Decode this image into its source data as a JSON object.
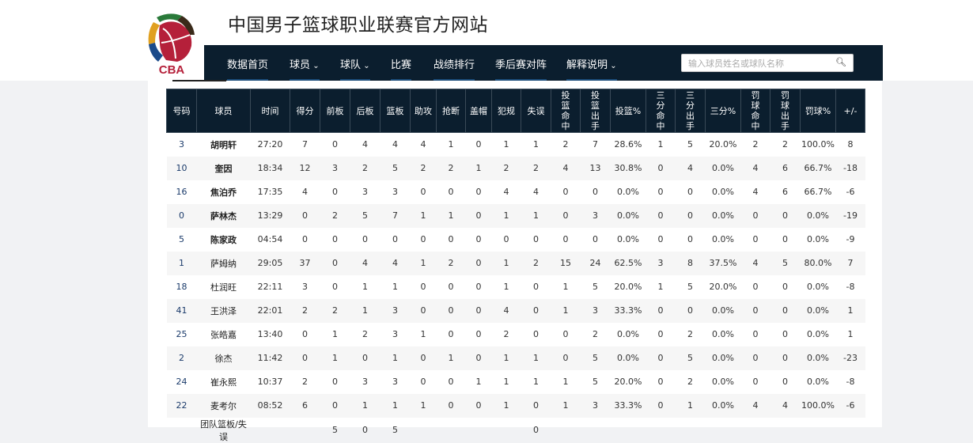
{
  "site": {
    "title": "中国男子篮球职业联赛官方网站",
    "logo_text": "CBA"
  },
  "nav": {
    "items": [
      {
        "label": "数据首页",
        "arrow": false
      },
      {
        "label": "球员",
        "arrow": true
      },
      {
        "label": "球队",
        "arrow": true
      },
      {
        "label": "比赛",
        "arrow": false
      },
      {
        "label": "战绩排行",
        "arrow": false
      },
      {
        "label": "季后赛对阵",
        "arrow": false
      },
      {
        "label": "解释说明",
        "arrow": true
      }
    ],
    "search_placeholder": "输入球员姓名或球队名称",
    "search_icon": "search-icon"
  },
  "table": {
    "headers": [
      "号码",
      "球员",
      "时间",
      "得分",
      "前板",
      "后板",
      "篮板",
      "助攻",
      "抢断",
      "盖帽",
      "犯规",
      "失误",
      "投篮命中",
      "投篮出手",
      "投篮%",
      "三分命中",
      "三分出手",
      "三分%",
      "罚球命中",
      "罚球出手",
      "罚球%",
      "+/-"
    ],
    "rows": [
      [
        "3",
        "胡明轩",
        "27:20",
        "7",
        "0",
        "4",
        "4",
        "4",
        "1",
        "0",
        "1",
        "1",
        "2",
        "7",
        "28.6%",
        "1",
        "5",
        "20.0%",
        "2",
        "2",
        "100.0%",
        "8"
      ],
      [
        "10",
        "奎因",
        "18:34",
        "12",
        "3",
        "2",
        "5",
        "2",
        "2",
        "1",
        "2",
        "2",
        "4",
        "13",
        "30.8%",
        "0",
        "4",
        "0.0%",
        "4",
        "6",
        "66.7%",
        "-18"
      ],
      [
        "16",
        "焦泊乔",
        "17:35",
        "4",
        "0",
        "3",
        "3",
        "0",
        "0",
        "0",
        "4",
        "4",
        "0",
        "0",
        "0.0%",
        "0",
        "0",
        "0.0%",
        "4",
        "6",
        "66.7%",
        "-6"
      ],
      [
        "0",
        "萨林杰",
        "13:29",
        "0",
        "2",
        "5",
        "7",
        "1",
        "1",
        "0",
        "1",
        "1",
        "0",
        "3",
        "0.0%",
        "0",
        "0",
        "0.0%",
        "0",
        "0",
        "0.0%",
        "-19"
      ],
      [
        "5",
        "陈家政",
        "04:54",
        "0",
        "0",
        "0",
        "0",
        "0",
        "0",
        "0",
        "0",
        "0",
        "0",
        "0",
        "0.0%",
        "0",
        "0",
        "0.0%",
        "0",
        "0",
        "0.0%",
        "-9"
      ],
      [
        "1",
        "萨姆纳",
        "29:05",
        "37",
        "0",
        "4",
        "4",
        "1",
        "2",
        "0",
        "1",
        "2",
        "15",
        "24",
        "62.5%",
        "3",
        "8",
        "37.5%",
        "4",
        "5",
        "80.0%",
        "7"
      ],
      [
        "18",
        "杜润旺",
        "22:11",
        "3",
        "0",
        "1",
        "1",
        "0",
        "0",
        "0",
        "1",
        "0",
        "1",
        "5",
        "20.0%",
        "1",
        "5",
        "20.0%",
        "0",
        "0",
        "0.0%",
        "-8"
      ],
      [
        "41",
        "王洪泽",
        "22:01",
        "2",
        "2",
        "1",
        "3",
        "0",
        "0",
        "0",
        "4",
        "0",
        "1",
        "3",
        "33.3%",
        "0",
        "0",
        "0.0%",
        "0",
        "0",
        "0.0%",
        "1"
      ],
      [
        "25",
        "张皓嘉",
        "13:40",
        "0",
        "1",
        "2",
        "3",
        "1",
        "0",
        "0",
        "2",
        "0",
        "0",
        "2",
        "0.0%",
        "0",
        "2",
        "0.0%",
        "0",
        "0",
        "0.0%",
        "1"
      ],
      [
        "2",
        "徐杰",
        "11:42",
        "0",
        "1",
        "0",
        "1",
        "0",
        "1",
        "0",
        "1",
        "1",
        "0",
        "5",
        "0.0%",
        "0",
        "5",
        "0.0%",
        "0",
        "0",
        "0.0%",
        "-23"
      ],
      [
        "24",
        "崔永熙",
        "10:37",
        "2",
        "0",
        "3",
        "3",
        "0",
        "0",
        "1",
        "1",
        "1",
        "1",
        "5",
        "20.0%",
        "0",
        "2",
        "0.0%",
        "0",
        "0",
        "0.0%",
        "-8"
      ],
      [
        "22",
        "麦考尔",
        "08:52",
        "6",
        "0",
        "1",
        "1",
        "1",
        "0",
        "0",
        "1",
        "0",
        "1",
        "3",
        "33.3%",
        "0",
        "1",
        "0.0%",
        "4",
        "4",
        "100.0%",
        "-6"
      ],
      [
        "",
        "团队篮板/失误",
        "",
        "",
        "5",
        "0",
        "5",
        "",
        "",
        "",
        "",
        "0",
        "",
        "",
        "",
        "",
        "",
        "",
        "",
        "",
        "",
        ""
      ]
    ],
    "starters": 5
  }
}
